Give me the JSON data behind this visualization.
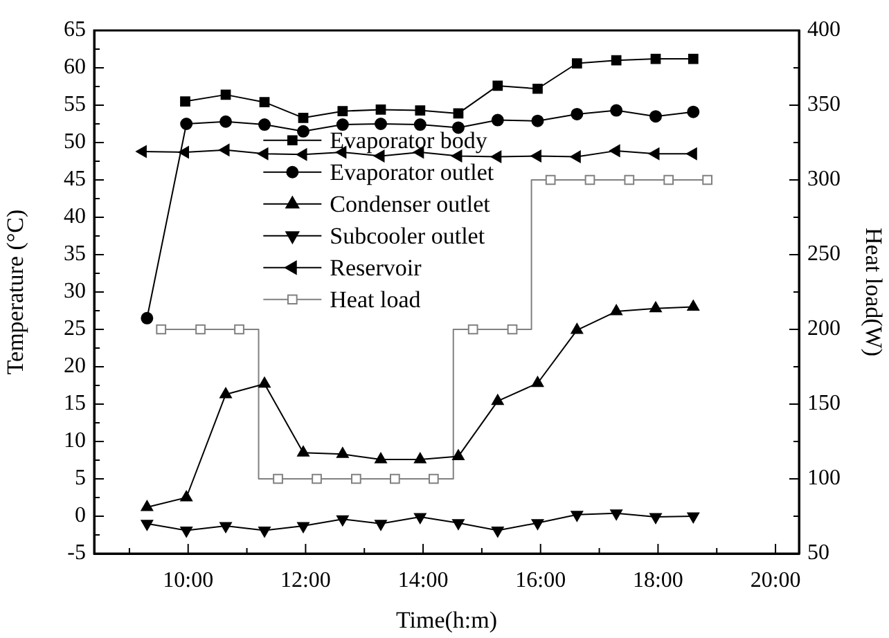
{
  "chart_data": {
    "type": "line",
    "xlabel": "Time(h:m)",
    "ylabel": "Temperature (°C)",
    "y2label": "Heat load(W)",
    "xlim": [
      8.4,
      20.4
    ],
    "xticks": [
      {
        "value": 9,
        "label": null
      },
      {
        "value": 10,
        "label": "10:00"
      },
      {
        "value": 11,
        "label": null
      },
      {
        "value": 12,
        "label": "12:00"
      },
      {
        "value": 13,
        "label": null
      },
      {
        "value": 14,
        "label": "14:00"
      },
      {
        "value": 15,
        "label": null
      },
      {
        "value": 16,
        "label": "16:00"
      },
      {
        "value": 17,
        "label": null
      },
      {
        "value": 18,
        "label": "18:00"
      },
      {
        "value": 19,
        "label": null
      },
      {
        "value": 20,
        "label": "20:00"
      }
    ],
    "ylim": [
      -5,
      65
    ],
    "yticks": [
      -5,
      {
        "value": -2.5,
        "label": null
      },
      0,
      {
        "value": 2.5,
        "label": null
      },
      5,
      {
        "value": 7.5,
        "label": null
      },
      10,
      {
        "value": 12.5,
        "label": null
      },
      15,
      {
        "value": 17.5,
        "label": null
      },
      20,
      {
        "value": 22.5,
        "label": null
      },
      25,
      {
        "value": 27.5,
        "label": null
      },
      30,
      {
        "value": 32.5,
        "label": null
      },
      35,
      {
        "value": 37.5,
        "label": null
      },
      40,
      {
        "value": 42.5,
        "label": null
      },
      45,
      {
        "value": 47.5,
        "label": null
      },
      50,
      {
        "value": 52.5,
        "label": null
      },
      55,
      {
        "value": 57.5,
        "label": null
      },
      60,
      {
        "value": 62.5,
        "label": null
      },
      65
    ],
    "y2lim": [
      50,
      400
    ],
    "y2ticks": [
      50,
      {
        "value": 75,
        "label": null
      },
      100,
      {
        "value": 125,
        "label": null
      },
      150,
      {
        "value": 175,
        "label": null
      },
      200,
      {
        "value": 225,
        "label": null
      },
      250,
      {
        "value": 275,
        "label": null
      },
      300,
      {
        "value": 325,
        "label": null
      },
      350,
      {
        "value": 375,
        "label": null
      },
      400
    ],
    "grid": false,
    "legend": "top",
    "series": [
      {
        "name": "Evaporator body",
        "color": "#000000",
        "marker": "square",
        "x": [
          9.95,
          10.64,
          11.3,
          11.96,
          12.63,
          13.28,
          13.95,
          14.6,
          15.27,
          15.95,
          16.62,
          17.29,
          17.96,
          18.6
        ],
        "values": [
          55.5,
          56.4,
          55.4,
          53.3,
          54.2,
          54.4,
          54.3,
          53.9,
          57.6,
          57.2,
          60.6,
          61.0,
          61.2,
          61.2
        ]
      },
      {
        "name": "Evaporator outlet",
        "color": "#000000",
        "marker": "circle",
        "x": [
          9.3,
          9.97,
          10.64,
          11.3,
          11.96,
          12.63,
          13.28,
          13.95,
          14.6,
          15.27,
          15.95,
          16.62,
          17.29,
          17.96,
          18.6
        ],
        "values": [
          26.5,
          52.5,
          52.8,
          52.4,
          51.5,
          52.4,
          52.5,
          52.4,
          52.0,
          53.0,
          52.9,
          53.8,
          54.3,
          53.5,
          54.1
        ]
      },
      {
        "name": "Condenser outlet",
        "color": "#000000",
        "marker": "triangle",
        "x": [
          9.3,
          9.97,
          10.64,
          11.3,
          11.96,
          12.63,
          13.28,
          13.95,
          14.6,
          15.27,
          15.95,
          16.62,
          17.29,
          17.96,
          18.6
        ],
        "values": [
          1.2,
          2.5,
          16.3,
          17.7,
          8.5,
          8.3,
          7.6,
          7.6,
          8.0,
          15.4,
          17.8,
          24.9,
          27.4,
          27.8,
          28.0
        ]
      },
      {
        "name": "Subcooler outlet",
        "color": "#000000",
        "marker": "triangle-down",
        "x": [
          9.3,
          9.97,
          10.64,
          11.3,
          11.96,
          12.63,
          13.28,
          13.95,
          14.6,
          15.27,
          15.95,
          16.62,
          17.29,
          17.96,
          18.6
        ],
        "values": [
          -1.0,
          -1.9,
          -1.3,
          -1.9,
          -1.3,
          -0.4,
          -1.0,
          -0.1,
          -0.9,
          -1.9,
          -0.9,
          0.2,
          0.4,
          -0.1,
          0.0
        ]
      },
      {
        "name": "Reservoir",
        "color": "#000000",
        "marker": "triangle-left",
        "x": [
          9.23,
          9.95,
          10.64,
          11.3,
          11.96,
          12.63,
          13.28,
          13.95,
          14.6,
          15.27,
          15.95,
          16.62,
          17.29,
          17.96,
          18.6
        ],
        "values": [
          48.8,
          48.7,
          49.0,
          48.5,
          48.4,
          48.7,
          48.2,
          48.7,
          48.2,
          48.1,
          48.2,
          48.1,
          48.9,
          48.5,
          48.5
        ]
      },
      {
        "name": "Heat load",
        "color": "#808080",
        "marker": "square-open",
        "type": "step",
        "axis": "y2",
        "x": [
          9.54,
          10.21,
          10.87,
          11.53,
          12.19,
          12.86,
          13.52,
          14.18,
          14.85,
          15.52,
          16.17,
          16.84,
          17.51,
          18.18,
          18.84
        ],
        "values": [
          200,
          200,
          200,
          100,
          100,
          100,
          100,
          100,
          200,
          200,
          300,
          300,
          300,
          300,
          300
        ]
      }
    ]
  }
}
